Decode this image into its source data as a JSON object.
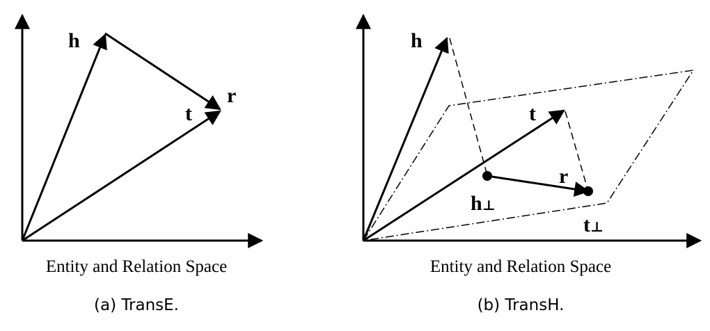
{
  "panels": [
    {
      "caption": "(a)  TransE.",
      "space_label": "Entity and Relation Space",
      "labels": {
        "h": "h",
        "r": "r",
        "t": "t"
      }
    },
    {
      "caption": "(b)  TransH.",
      "space_label": "Entity and Relation Space",
      "labels": {
        "h": "h",
        "r": "r",
        "t": "t",
        "h_perp": "h",
        "t_perp": "t",
        "perp": "⊥"
      }
    }
  ]
}
